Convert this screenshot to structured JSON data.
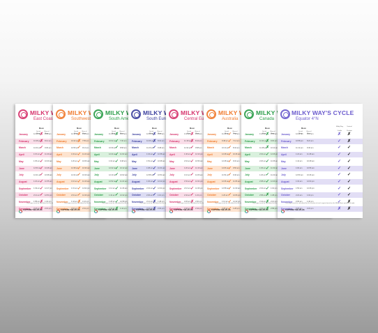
{
  "poster": {
    "title_base": "MILKY WAY'S CYCLE",
    "moon_label": "Moon",
    "col_set": "Set of Moon",
    "col_rise": "Rise of Moon",
    "col_mw": "Milky Way",
    "col_visible": "Visible",
    "col_vertical": "Vertical",
    "col_position": "Position",
    "months": [
      "January",
      "February",
      "March",
      "April",
      "May",
      "June",
      "July",
      "August",
      "September",
      "October",
      "November",
      "December"
    ],
    "footer_note": "The maps must be calculated for the location of each region based on the Milky Way's position at night.",
    "brand": "CAPTURE THE ATLAS"
  },
  "cards": [
    {
      "title": "MILKY WAY'S CYCLE",
      "subtitle": "East Coast",
      "color": "#d6336c",
      "tint": "#f9dde8",
      "times": [
        [
          "12:32 am",
          "9:02 am"
        ],
        [
          "10:48 pm",
          "8:12 am"
        ],
        [
          "11:02 pm",
          "9:30 am"
        ],
        [
          "1:15 am",
          "11:40 am"
        ],
        [
          "1:35 am",
          "10:20 am"
        ],
        [
          "12:50 am",
          "10:48 am"
        ],
        [
          "12:41 am",
          "10:38 am"
        ],
        [
          "1:22 am",
          "11:55 am"
        ],
        [
          "1:49 am",
          "12:17 pm"
        ],
        [
          "2:14 am",
          "12:54 pm"
        ],
        [
          "1:58 am",
          "1:32 pm"
        ],
        [
          "3:18 am",
          "2:15 pm"
        ]
      ],
      "marks": [
        "✗",
        "✗",
        "✓",
        "✓",
        "✓",
        "✓",
        "✓",
        "✓",
        "✓",
        "✓",
        "✗",
        "✗"
      ]
    },
    {
      "title": "MILKY WAY'S CYCLE",
      "subtitle": "Southwest",
      "color": "#f07a2c",
      "tint": "#fde3cf",
      "times": [
        [
          "12:12 am",
          "8:40 am"
        ],
        [
          "10:22 pm",
          "7:55 am"
        ],
        [
          "10:50 pm",
          "9:14 am"
        ],
        [
          "1:02 am",
          "11:22 am"
        ],
        [
          "1:20 am",
          "10:06 am"
        ],
        [
          "12:38 am",
          "10:30 am"
        ],
        [
          "12:24 am",
          "10:20 am"
        ],
        [
          "1:10 am",
          "11:40 am"
        ],
        [
          "1:31 am",
          "12:02 pm"
        ],
        [
          "2:01 am",
          "12:40 pm"
        ],
        [
          "1:44 am",
          "1:16 pm"
        ],
        [
          "3:02 am",
          "2:01 pm"
        ]
      ],
      "marks": [
        "✗",
        "✗",
        "✓",
        "✓",
        "✓",
        "✓",
        "✓",
        "✓",
        "✓",
        "✓",
        "✗",
        "✗"
      ]
    },
    {
      "title": "MILKY WAY'S CYCLE",
      "subtitle": "South America",
      "color": "#2a9d48",
      "tint": "#d9f0dd",
      "times": [
        [
          "11:40 pm",
          "8:12 am"
        ],
        [
          "10:02 pm",
          "7:30 am"
        ],
        [
          "10:30 pm",
          "8:58 am"
        ],
        [
          "12:44 am",
          "11:02 am"
        ],
        [
          "1:04 am",
          "9:48 am"
        ],
        [
          "12:22 am",
          "10:12 am"
        ],
        [
          "12:10 am",
          "10:02 am"
        ],
        [
          "12:52 am",
          "11:22 am"
        ],
        [
          "1:14 am",
          "11:46 am"
        ],
        [
          "1:42 am",
          "12:22 pm"
        ],
        [
          "1:28 am",
          "12:58 pm"
        ],
        [
          "2:44 am",
          "1:44 pm"
        ]
      ],
      "marks": [
        "✗",
        "✓",
        "✓",
        "✓",
        "✓",
        "✓",
        "✓",
        "✓",
        "✓",
        "✓",
        "✓",
        "✗"
      ]
    },
    {
      "title": "MILKY WAY'S CYCLE",
      "subtitle": "South Europe",
      "color": "#3b3f9e",
      "tint": "#dcdcf3",
      "times": [
        [
          "12:52 am",
          "9:22 am"
        ],
        [
          "11:06 pm",
          "8:32 am"
        ],
        [
          "11:20 pm",
          "9:48 am"
        ],
        [
          "1:34 am",
          "11:58 am"
        ],
        [
          "1:52 am",
          "10:38 am"
        ],
        [
          "1:08 am",
          "11:04 am"
        ],
        [
          "12:58 am",
          "10:54 am"
        ],
        [
          "1:40 am",
          "12:12 pm"
        ],
        [
          "2:04 am",
          "12:34 pm"
        ],
        [
          "2:30 am",
          "1:10 pm"
        ],
        [
          "2:14 am",
          "1:48 pm"
        ],
        [
          "3:34 am",
          "2:30 pm"
        ]
      ],
      "marks": [
        "✗",
        "✗",
        "✓",
        "✓",
        "✓",
        "✓",
        "✓",
        "✓",
        "✓",
        "✓",
        "✗",
        "✗"
      ]
    },
    {
      "title": "MILKY WAY'S CYCLE",
      "subtitle": "Central Europe",
      "color": "#d6336c",
      "tint": "#f9dde8",
      "times": [
        [
          "1:02 am",
          "9:34 am"
        ],
        [
          "11:18 pm",
          "8:44 am"
        ],
        [
          "11:32 pm",
          "9:58 am"
        ],
        [
          "1:46 am",
          "12:10 pm"
        ],
        [
          "2:04 am",
          "10:50 am"
        ],
        [
          "1:20 am",
          "11:16 am"
        ],
        [
          "1:10 am",
          "11:06 am"
        ],
        [
          "1:52 am",
          "12:24 pm"
        ],
        [
          "2:16 am",
          "12:46 pm"
        ],
        [
          "2:42 am",
          "1:22 pm"
        ],
        [
          "2:26 am",
          "2:00 pm"
        ],
        [
          "3:46 am",
          "2:42 pm"
        ]
      ],
      "marks": [
        "✗",
        "✗",
        "✓",
        "✓",
        "✓",
        "✓",
        "✓",
        "✓",
        "✓",
        "✓",
        "✗",
        "✗"
      ]
    },
    {
      "title": "MILKY WAY'S CYCLE",
      "subtitle": "Australia",
      "color": "#f07a2c",
      "tint": "#fde3cf",
      "times": [
        [
          "11:22 pm",
          "7:54 am"
        ],
        [
          "9:48 pm",
          "7:14 am"
        ],
        [
          "10:14 pm",
          "8:42 am"
        ],
        [
          "12:28 am",
          "10:46 am"
        ],
        [
          "12:48 am",
          "9:32 am"
        ],
        [
          "12:06 am",
          "9:56 am"
        ],
        [
          "11:54 pm",
          "9:46 am"
        ],
        [
          "12:36 am",
          "11:06 am"
        ],
        [
          "12:58 am",
          "11:30 am"
        ],
        [
          "1:26 am",
          "12:06 pm"
        ],
        [
          "1:12 am",
          "12:42 pm"
        ],
        [
          "2:28 am",
          "1:28 pm"
        ]
      ],
      "marks": [
        "✓",
        "✓",
        "✓",
        "✓",
        "✓",
        "✓",
        "✓",
        "✓",
        "✓",
        "✓",
        "✓",
        "✓"
      ]
    },
    {
      "title": "MILKY WAY'S CYCLE",
      "subtitle": "Canada",
      "color": "#2a9d48",
      "tint": "#d9f0dd",
      "times": [
        [
          "1:18 am",
          "9:50 am"
        ],
        [
          "11:34 pm",
          "9:00 am"
        ],
        [
          "11:48 pm",
          "10:14 am"
        ],
        [
          "2:02 am",
          "12:26 pm"
        ],
        [
          "2:20 am",
          "11:06 am"
        ],
        [
          "1:36 am",
          "11:32 am"
        ],
        [
          "1:26 am",
          "11:22 am"
        ],
        [
          "2:08 am",
          "12:40 pm"
        ],
        [
          "2:32 am",
          "1:02 pm"
        ],
        [
          "2:58 am",
          "1:38 pm"
        ],
        [
          "2:42 am",
          "2:16 pm"
        ],
        [
          "4:02 am",
          "2:58 pm"
        ]
      ],
      "marks": [
        "✗",
        "✗",
        "✗",
        "✓",
        "✓",
        "✓",
        "✓",
        "✓",
        "✓",
        "✗",
        "✗",
        "✗"
      ]
    },
    {
      "title": "MILKY WAY'S CYCLE",
      "subtitle": "Equator 4°N",
      "color": "#6a5acd",
      "tint": "#e2def5",
      "times": [
        [
          "12:42 am",
          "9:12 am"
        ],
        [
          "10:58 pm",
          "8:22 am"
        ],
        [
          "11:12 pm",
          "9:40 am"
        ],
        [
          "1:24 am",
          "11:48 am"
        ],
        [
          "1:44 am",
          "10:28 am"
        ],
        [
          "1:00 am",
          "10:56 am"
        ],
        [
          "12:50 am",
          "10:46 am"
        ],
        [
          "1:32 am",
          "12:04 pm"
        ],
        [
          "1:56 am",
          "12:26 pm"
        ],
        [
          "2:22 am",
          "1:02 pm"
        ],
        [
          "2:06 am",
          "1:40 pm"
        ],
        [
          "3:26 am",
          "2:22 pm"
        ]
      ],
      "marks": [
        "✗",
        "✓",
        "✓",
        "✓",
        "✓",
        "✓",
        "✓",
        "✓",
        "✓",
        "✓",
        "✓",
        "✗"
      ],
      "marks2": [
        "✗",
        "✗",
        "✓",
        "✓",
        "✓",
        "✓",
        "✓",
        "✓",
        "✓",
        "✓",
        "✗",
        "✗"
      ]
    }
  ]
}
